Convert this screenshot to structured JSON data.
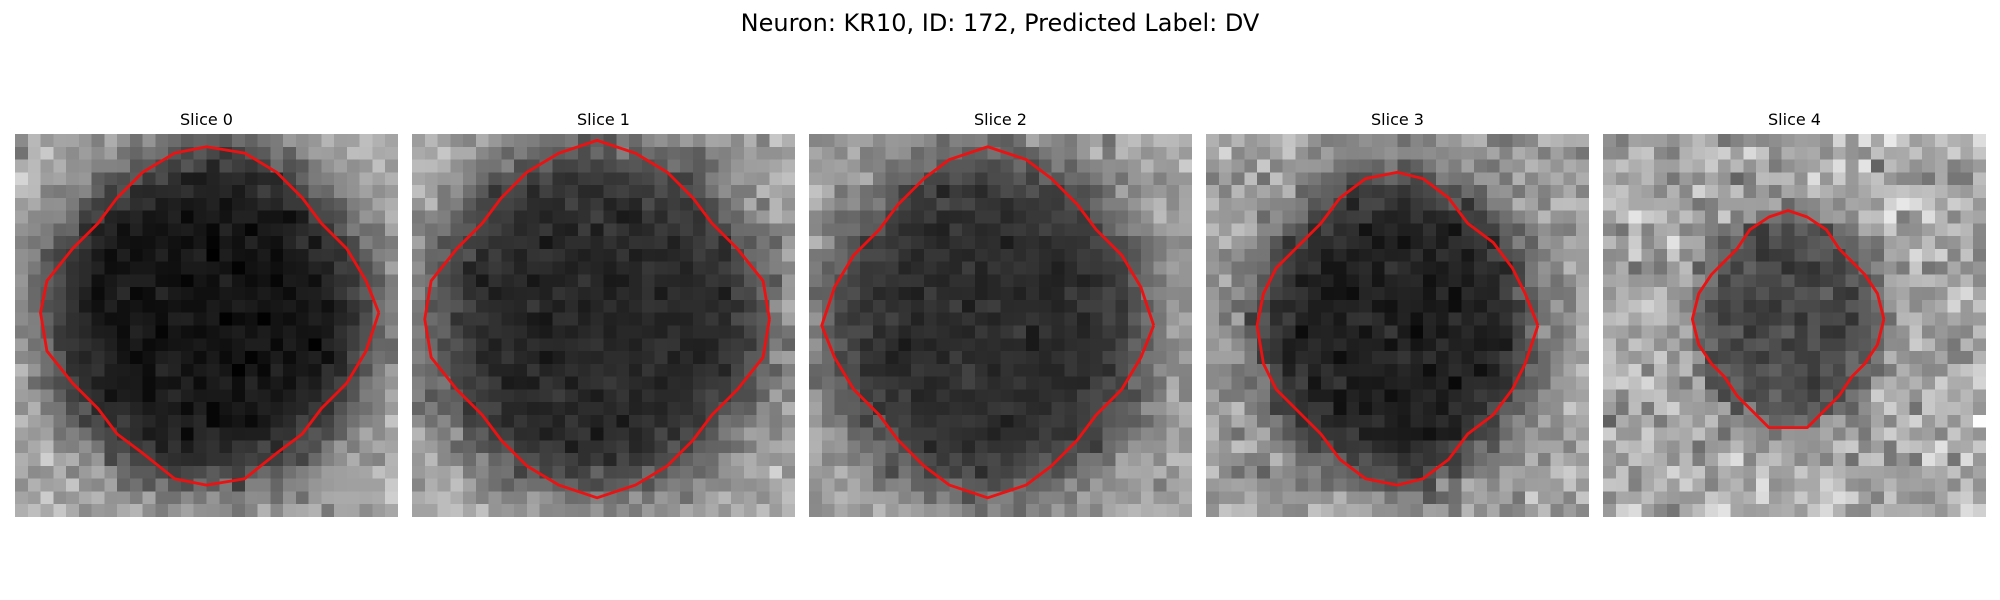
{
  "figure": {
    "title": "Neuron: KR10, ID: 172, Predicted Label: DV"
  },
  "contour_color": "#ee1111",
  "panels": [
    {
      "title": "Slice 0",
      "seed": 11,
      "cell_center": [
        15.2,
        14.2
      ],
      "cell_radius": [
        13.2,
        13.4
      ],
      "inner_gray": 20,
      "outer_gray": 175,
      "noise": 38
    },
    {
      "title": "Slice 1",
      "seed": 23,
      "cell_center": [
        14.5,
        14.5
      ],
      "cell_radius": [
        13.6,
        13.8
      ],
      "inner_gray": 40,
      "outer_gray": 170,
      "noise": 40
    },
    {
      "title": "Slice 2",
      "seed": 37,
      "cell_center": [
        14.0,
        14.8
      ],
      "cell_radius": [
        12.8,
        13.6
      ],
      "inner_gray": 45,
      "outer_gray": 165,
      "noise": 38
    },
    {
      "title": "Slice 3",
      "seed": 51,
      "cell_center": [
        14.8,
        15.2
      ],
      "cell_radius": [
        11.0,
        12.2
      ],
      "inner_gray": 30,
      "outer_gray": 160,
      "noise": 42
    },
    {
      "title": "Slice 4",
      "seed": 67,
      "cell_center": [
        14.6,
        14.6
      ],
      "cell_radius": [
        7.4,
        8.6
      ],
      "inner_gray": 70,
      "outer_gray": 170,
      "noise": 55
    }
  ]
}
